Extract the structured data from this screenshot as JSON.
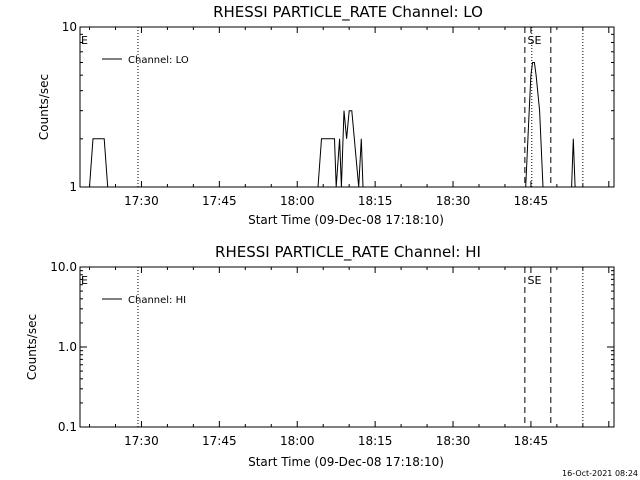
{
  "footer": {
    "timestamp": "16-Oct-2021 08:24"
  },
  "chart_data": [
    {
      "type": "line",
      "title": "RHESSI PARTICLE_RATE Channel: LO",
      "xlabel": "Start Time (09-Dec-08 17:18:10)",
      "ylabel": "Counts/sec",
      "yscale": "log",
      "xlim": [
        "17:18:10",
        "19:01:00"
      ],
      "ylim": [
        1,
        10
      ],
      "x_ticks": [
        "17:30",
        "17:45",
        "18:00",
        "18:15",
        "18:30",
        "18:45"
      ],
      "y_ticks": [
        {
          "value": 1,
          "label": "1"
        },
        {
          "value": 10,
          "label": "10"
        }
      ],
      "legend": {
        "position": "top-left",
        "entries": [
          "Channel: LO"
        ]
      },
      "markers": [
        {
          "label": "E",
          "x": "17:18:10",
          "style": "none"
        },
        {
          "label": "SE",
          "x": "18:45:30",
          "style": "none"
        }
      ],
      "vlines": [
        {
          "x": "17:29:20",
          "style": "dotted"
        },
        {
          "x": "18:43:50",
          "style": "dashed"
        },
        {
          "x": "18:45:10",
          "style": "dotted"
        },
        {
          "x": "18:48:50",
          "style": "dashed"
        },
        {
          "x": "18:55:00",
          "style": "dotted"
        }
      ],
      "series": [
        {
          "name": "Channel: LO",
          "x": [
            "17:20:00",
            "17:20:40",
            "17:22:50",
            "17:23:30",
            "18:04:00",
            "18:04:40",
            "18:07:10",
            "18:07:30",
            "18:08:10",
            "18:08:30",
            "18:09:00",
            "18:09:30",
            "18:10:00",
            "18:10:30",
            "18:11:50",
            "18:12:20",
            "18:12:40",
            "18:44:00",
            "18:44:40",
            "18:45:00",
            "18:45:20",
            "18:45:40",
            "18:46:00",
            "18:46:40",
            "18:47:20",
            "18:52:50",
            "18:53:10",
            "18:53:30"
          ],
          "values": [
            1,
            2,
            2,
            1,
            1,
            2,
            2,
            1,
            2,
            1,
            3,
            2,
            3,
            3,
            1,
            2,
            1,
            1,
            3,
            5,
            6,
            6,
            5,
            3,
            1,
            1,
            2,
            1
          ]
        }
      ]
    },
    {
      "type": "line",
      "title": "RHESSI PARTICLE_RATE Channel: HI",
      "xlabel": "Start Time (09-Dec-08 17:18:10)",
      "ylabel": "Counts/sec",
      "yscale": "log",
      "xlim": [
        "17:18:10",
        "19:01:00"
      ],
      "ylim": [
        0.1,
        10
      ],
      "x_ticks": [
        "17:30",
        "17:45",
        "18:00",
        "18:15",
        "18:30",
        "18:45"
      ],
      "y_ticks": [
        {
          "value": 0.1,
          "label": "0.1"
        },
        {
          "value": 1,
          "label": "1.0"
        },
        {
          "value": 10,
          "label": "10.0"
        }
      ],
      "legend": {
        "position": "top-left",
        "entries": [
          "Channel: HI"
        ]
      },
      "markers": [
        {
          "label": "E",
          "x": "17:18:10",
          "style": "none"
        },
        {
          "label": "SE",
          "x": "18:45:30",
          "style": "none"
        }
      ],
      "vlines": [
        {
          "x": "17:29:20",
          "style": "dotted"
        },
        {
          "x": "18:43:50",
          "style": "dashed"
        },
        {
          "x": "18:48:50",
          "style": "dashed"
        },
        {
          "x": "18:55:00",
          "style": "dotted"
        }
      ],
      "series": [
        {
          "name": "Channel: HI",
          "x": [],
          "values": []
        }
      ]
    }
  ]
}
